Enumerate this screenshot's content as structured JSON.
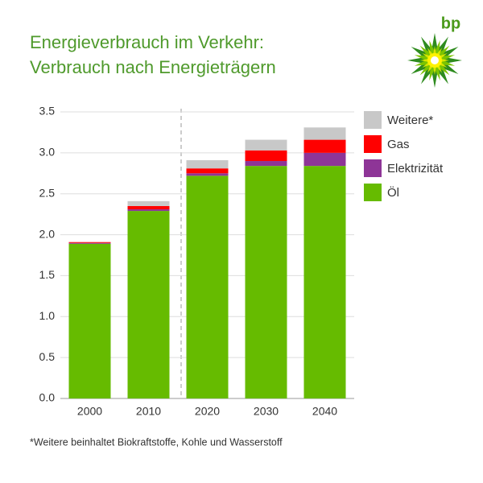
{
  "logo_text": "bp",
  "chart_data": {
    "type": "stacked-bar",
    "title": [
      "Energieverbrauch im Verkehr:",
      "Verbrauch nach Energieträgern"
    ],
    "categories": [
      "2000",
      "2010",
      "2020",
      "2030",
      "2040"
    ],
    "series": [
      {
        "name": "Öl",
        "color": "#66bb00",
        "values": [
          1.89,
          2.29,
          2.72,
          2.84,
          2.84
        ]
      },
      {
        "name": "Elektrizität",
        "color": "#8e3597",
        "values": [
          0.01,
          0.02,
          0.03,
          0.06,
          0.16
        ]
      },
      {
        "name": "Gas",
        "color": "#ff0000",
        "values": [
          0.01,
          0.04,
          0.06,
          0.13,
          0.16
        ]
      },
      {
        "name": "Weitere*",
        "color": "#c8c8c8",
        "values": [
          0,
          0.06,
          0.1,
          0.13,
          0.15
        ]
      }
    ],
    "ylim": [
      0,
      3.5
    ],
    "yticks": [
      {
        "value": 0,
        "label": "0.0"
      },
      0.5,
      {
        "value": 1,
        "label": "1.0"
      },
      1.5,
      {
        "value": 2,
        "label": "2.0"
      },
      2.5,
      {
        "value": 3,
        "label": "3.0"
      },
      3.5
    ],
    "grid": true,
    "legend": "right",
    "footnote": "*Weitere beinhaltet Biokraftstoffe, Kohle und Wasserstoff"
  }
}
